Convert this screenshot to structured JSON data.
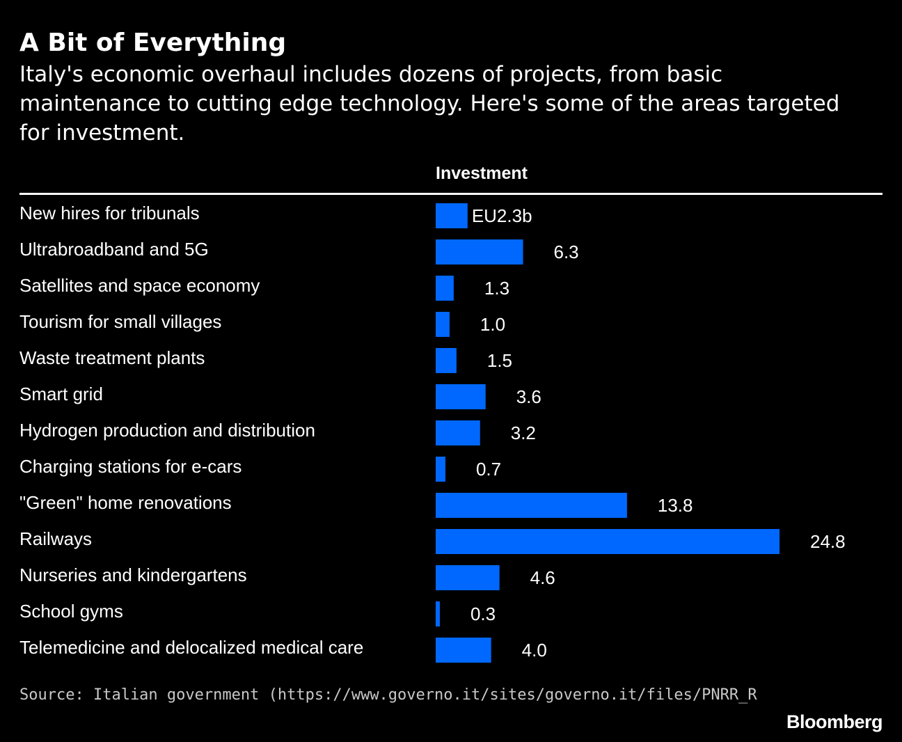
{
  "header": {
    "title": "A Bit of Everything",
    "subtitle": "Italy's economic overhaul includes dozens of projects, from basic maintenance to cutting edge technology. Here's some of the areas targeted for investment."
  },
  "column_header": "Investment",
  "colors": {
    "bar": "#0068ff",
    "background": "#000000",
    "text": "#ffffff"
  },
  "chart_data": {
    "type": "bar",
    "orientation": "horizontal",
    "categories": [
      "New hires for tribunals",
      "Ultrabroadband and 5G",
      "Satellites and space economy",
      "Tourism for small villages",
      "Waste treatment plants",
      "Smart grid",
      "Hydrogen production and distribution",
      "Charging stations for e-cars",
      "\"Green\" home renovations",
      "Railways",
      "Nurseries and kindergartens",
      "School gyms",
      "Telemedicine and delocalized medical care"
    ],
    "values": [
      2.3,
      6.3,
      1.3,
      1.0,
      1.5,
      3.6,
      3.2,
      0.7,
      13.8,
      24.8,
      4.6,
      0.3,
      4.0
    ],
    "value_labels": [
      "EU2.3b",
      "6.3",
      "1.3",
      "1.0",
      "1.5",
      "3.6",
      "3.2",
      "0.7",
      "13.8",
      "24.8",
      "4.6",
      "0.3",
      "4.0"
    ],
    "xlim": [
      0,
      24.8
    ]
  },
  "footer": {
    "source": "Source: Italian government (https://www.governo.it/sites/governo.it/files/PNRR_RiformeInvestimentiMissioni",
    "brand": "Bloomberg"
  }
}
